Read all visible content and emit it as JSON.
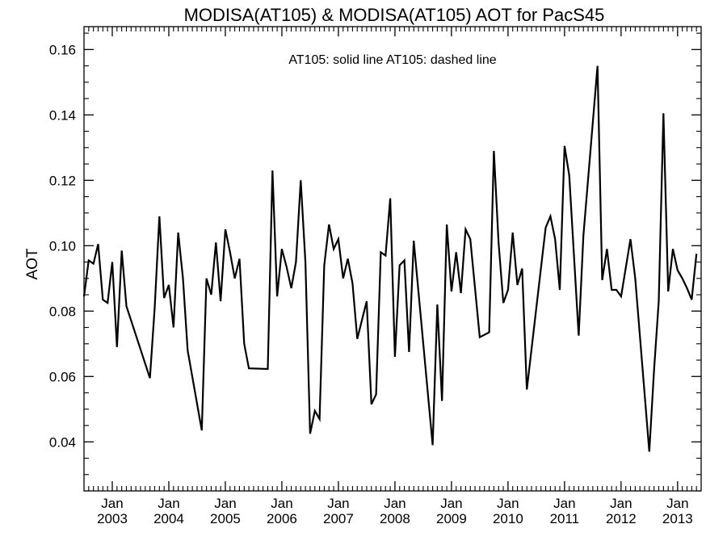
{
  "chart_data": {
    "type": "line",
    "title": "MODISA(AT105) & MODISA(AT105)  AOT for PacS45",
    "legend_text": "AT105: solid line   AT105: dashed line",
    "legend_position": "top-center",
    "ylabel": "AOT",
    "xlabel": "",
    "ylim": [
      0.025,
      0.167
    ],
    "xlim": [
      "2002-07",
      "2013-06"
    ],
    "y_ticks": [
      {
        "value": 0.04,
        "label": "0.04"
      },
      {
        "value": 0.06,
        "label": "0.06"
      },
      {
        "value": 0.08,
        "label": "0.08"
      },
      {
        "value": 0.1,
        "label": "0.10"
      },
      {
        "value": 0.12,
        "label": "0.12"
      },
      {
        "value": 0.14,
        "label": "0.14"
      },
      {
        "value": 0.16,
        "label": "0.16"
      }
    ],
    "x_ticks": [
      {
        "value": "2003-01",
        "month": "Jan",
        "year": "2003"
      },
      {
        "value": "2004-01",
        "month": "Jan",
        "year": "2004"
      },
      {
        "value": "2005-01",
        "month": "Jan",
        "year": "2005"
      },
      {
        "value": "2006-01",
        "month": "Jan",
        "year": "2006"
      },
      {
        "value": "2007-01",
        "month": "Jan",
        "year": "2007"
      },
      {
        "value": "2008-01",
        "month": "Jan",
        "year": "2008"
      },
      {
        "value": "2009-01",
        "month": "Jan",
        "year": "2009"
      },
      {
        "value": "2010-01",
        "month": "Jan",
        "year": "2010"
      },
      {
        "value": "2011-01",
        "month": "Jan",
        "year": "2011"
      },
      {
        "value": "2012-01",
        "month": "Jan",
        "year": "2012"
      },
      {
        "value": "2013-01",
        "month": "Jan",
        "year": "2013"
      }
    ],
    "grid": false,
    "series": [
      {
        "style": "solid",
        "color": "#000000",
        "x": [
          "2002-07",
          "2002-08",
          "2002-09",
          "2002-10",
          "2002-11",
          "2002-12",
          "2003-01",
          "2003-02",
          "2003-03",
          "2003-04",
          "2003-09",
          "2003-10",
          "2003-11",
          "2003-12",
          "2004-01",
          "2004-02",
          "2004-03",
          "2004-04",
          "2004-05",
          "2004-08",
          "2004-09",
          "2004-10",
          "2004-11",
          "2004-12",
          "2005-01",
          "2005-02",
          "2005-03",
          "2005-04",
          "2005-05",
          "2005-06",
          "2005-10",
          "2005-11",
          "2005-12",
          "2006-01",
          "2006-02",
          "2006-03",
          "2006-04",
          "2006-05",
          "2006-06",
          "2006-07",
          "2006-08",
          "2006-09",
          "2006-10",
          "2006-11",
          "2006-12",
          "2007-01",
          "2007-02",
          "2007-03",
          "2007-04",
          "2007-05",
          "2007-07",
          "2007-08",
          "2007-09",
          "2007-10",
          "2007-11",
          "2007-12",
          "2008-01",
          "2008-02",
          "2008-03",
          "2008-04",
          "2008-05",
          "2008-09",
          "2008-10",
          "2008-11",
          "2008-12",
          "2009-01",
          "2009-02",
          "2009-03",
          "2009-04",
          "2009-05",
          "2009-07",
          "2009-09",
          "2009-10",
          "2009-11",
          "2009-12",
          "2010-01",
          "2010-02",
          "2010-03",
          "2010-04",
          "2010-05",
          "2010-09",
          "2010-10",
          "2010-11",
          "2010-12",
          "2011-01",
          "2011-02",
          "2011-04",
          "2011-05",
          "2011-08",
          "2011-09",
          "2011-10",
          "2011-11",
          "2011-12",
          "2012-01",
          "2012-03",
          "2012-04",
          "2012-07",
          "2012-08",
          "2012-09",
          "2012-10",
          "2012-11",
          "2012-12",
          "2013-01",
          "2013-02",
          "2013-03",
          "2013-04",
          "2013-05"
        ],
        "y": [
          0.0845,
          0.0955,
          0.0945,
          0.1005,
          0.0835,
          0.0825,
          0.095,
          0.069,
          0.0985,
          0.0815,
          0.0595,
          0.081,
          0.109,
          0.084,
          0.088,
          0.075,
          0.104,
          0.09,
          0.068,
          0.0435,
          0.09,
          0.085,
          0.101,
          0.083,
          0.105,
          0.098,
          0.09,
          0.096,
          0.07,
          0.0625,
          0.0623,
          0.123,
          0.0845,
          0.099,
          0.0935,
          0.087,
          0.095,
          0.12,
          0.095,
          0.0425,
          0.0495,
          0.047,
          0.094,
          0.1065,
          0.099,
          0.102,
          0.09,
          0.096,
          0.0885,
          0.0715,
          0.083,
          0.0515,
          0.0545,
          0.098,
          0.097,
          0.1145,
          0.066,
          0.094,
          0.0955,
          0.0675,
          0.1015,
          0.039,
          0.082,
          0.0525,
          0.1065,
          0.086,
          0.098,
          0.0855,
          0.105,
          0.102,
          0.072,
          0.0735,
          0.129,
          0.101,
          0.0825,
          0.0865,
          0.104,
          0.088,
          0.093,
          0.056,
          0.1055,
          0.109,
          0.102,
          0.0865,
          0.1305,
          0.1215,
          0.0725,
          0.103,
          0.155,
          0.0895,
          0.099,
          0.0865,
          0.0865,
          0.0845,
          0.102,
          0.09,
          0.037,
          0.062,
          0.083,
          0.1405,
          0.086,
          0.099,
          0.0925,
          0.09,
          0.087,
          0.0835,
          0.0975
        ]
      }
    ]
  }
}
